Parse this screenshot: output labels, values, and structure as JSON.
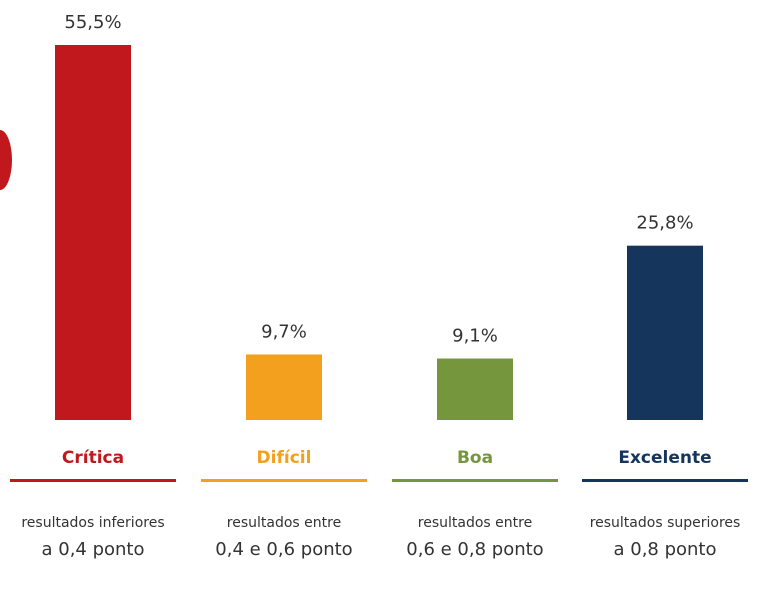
{
  "chart_data": {
    "type": "bar",
    "categories": [
      "Crítica",
      "Difícil",
      "Boa",
      "Excelente"
    ],
    "values": [
      55.5,
      9.7,
      9.1,
      25.8
    ],
    "value_labels": [
      "55,5%",
      "9,7%",
      "9,1%",
      "25,8%"
    ],
    "colors": [
      "#c1181e",
      "#f4a01f",
      "#76963e",
      "#16355c"
    ],
    "descriptions": [
      [
        "resultados inferiores",
        "a 0,4 ponto"
      ],
      [
        "resultados entre",
        "0,4 e 0,6 ponto"
      ],
      [
        "resultados entre",
        "0,6 e 0,8 ponto"
      ],
      [
        "resultados superiores",
        "a 0,8 ponto"
      ]
    ]
  }
}
